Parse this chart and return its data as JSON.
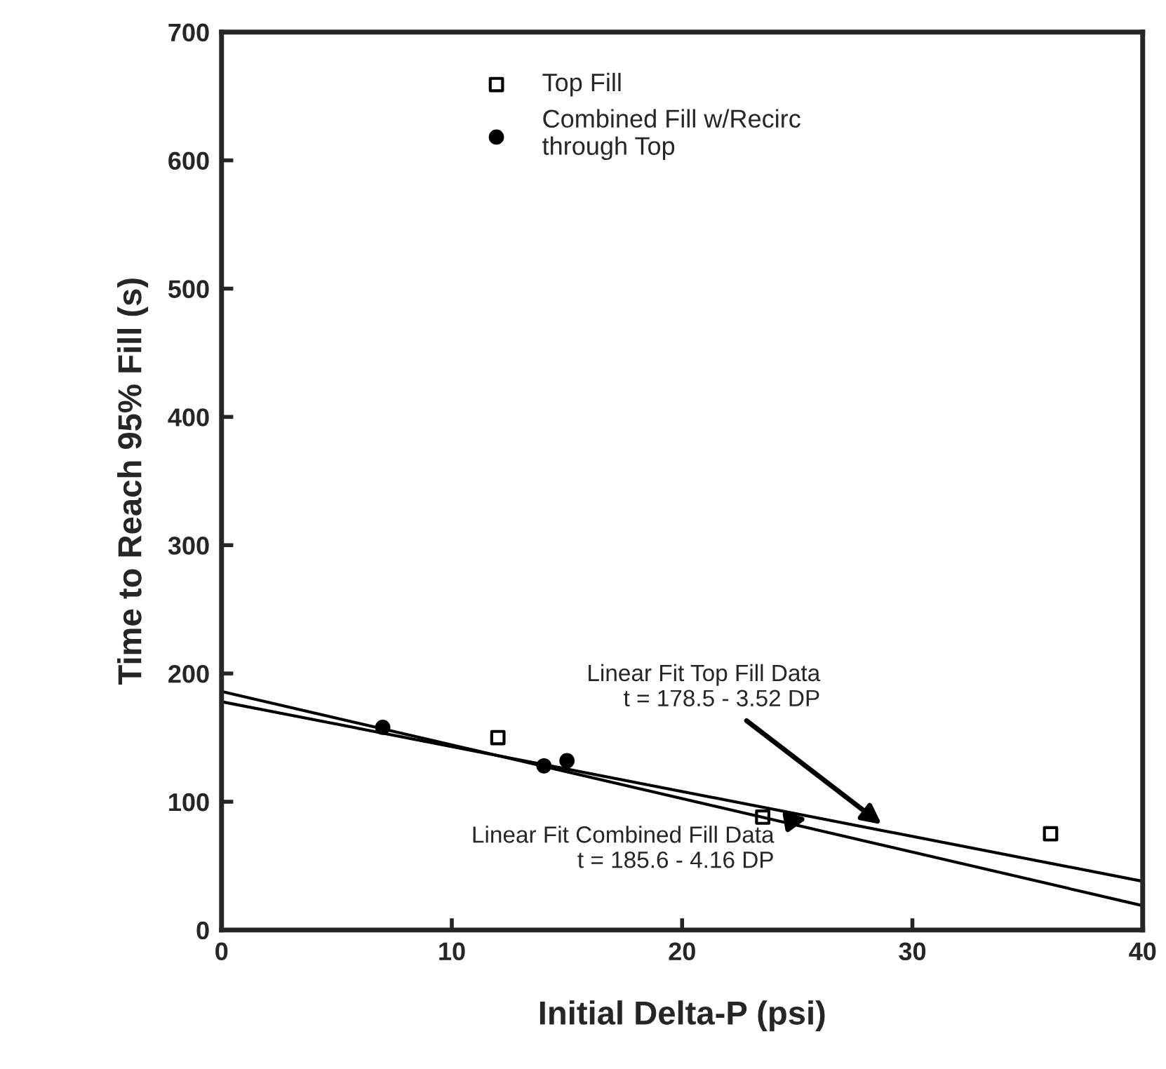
{
  "chart_data": {
    "type": "scatter",
    "xlabel": "Initial Delta-P (psi)",
    "ylabel": "Time to Reach 95% Fill (s)",
    "xlim": [
      0,
      40
    ],
    "ylim": [
      0,
      700
    ],
    "xticks": [
      0,
      10,
      20,
      30,
      40
    ],
    "yticks": [
      0,
      100,
      200,
      300,
      400,
      500,
      600,
      700
    ],
    "grid": false,
    "legend": "top",
    "series": [
      {
        "name": "Top Fill",
        "marker": "square",
        "color": "#000000",
        "x": [
          12,
          23.5,
          36
        ],
        "values": [
          150,
          88,
          75
        ]
      },
      {
        "name": "Combined Fill w/Recirc\nthrough Top",
        "marker": "circle",
        "color": "#000000",
        "x": [
          7,
          14,
          15
        ],
        "values": [
          158,
          128,
          132
        ]
      },
      {
        "type": "line",
        "color": "#000000",
        "x": [
          0,
          40
        ],
        "values": [
          178,
          38
        ]
      },
      {
        "type": "line",
        "color": "#000000",
        "x": [
          0,
          40
        ],
        "values": [
          186,
          19
        ]
      }
    ],
    "annotations": [
      "Linear Fit Top Fill Data\nt = 178.5 - 3.52 DP",
      "Linear Fit Combined Fill Data\nt = 185.6 - 4.16 DP"
    ]
  }
}
